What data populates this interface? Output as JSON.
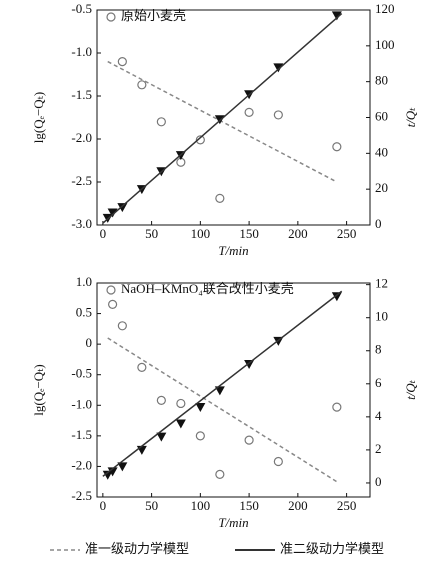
{
  "chart_data": [
    {
      "type": "scatter",
      "xlabel": "T/min",
      "ylabel": "lg(Qₑ−Qₜ)",
      "y2label": "t/Qₜ",
      "xlim": [
        -6,
        274
      ],
      "xticks": [
        0,
        50,
        100,
        150,
        200,
        250
      ],
      "ylim": [
        -3,
        -0.5
      ],
      "yticks": [
        {
          "value": -3,
          "label": "-3.0"
        },
        -2.5,
        {
          "value": -2,
          "label": "-2.0"
        },
        -1.5,
        {
          "value": -1,
          "label": "-1.0"
        },
        -0.5
      ],
      "y2lim": [
        0,
        120
      ],
      "y2ticks": [
        0,
        20,
        40,
        60,
        80,
        100,
        120
      ],
      "series": [
        {
          "name": "原始小麦壳",
          "style": "circle",
          "color": "#777777",
          "x": [
            20,
            40,
            60,
            80,
            100,
            120,
            150,
            180,
            240
          ],
          "values": [
            -1.1,
            -1.37,
            -1.8,
            -2.27,
            -2.01,
            -2.69,
            -1.69,
            -1.72,
            -2.09
          ]
        },
        {
          "name": "准一级动力学模型",
          "style": "dashed",
          "color": "#888888",
          "x": [
            5,
            240
          ],
          "values": [
            -1.1,
            -2.5
          ]
        },
        {
          "style": "triangle",
          "axis": "y2",
          "color": "#111111",
          "x": [
            5,
            10,
            20,
            40,
            60,
            80,
            120,
            150,
            180,
            240
          ],
          "values": [
            4,
            7,
            10,
            20,
            30,
            39,
            59,
            73,
            88,
            117
          ]
        },
        {
          "name": "准二级动力学模型",
          "style": "solid",
          "axis": "y2",
          "color": "#333333",
          "x": [
            0,
            245
          ],
          "values": [
            1,
            118
          ]
        }
      ]
    },
    {
      "type": "scatter",
      "xlabel": "T/min",
      "ylabel": "lg(Qₑ−Qₜ)",
      "y2label": "t/Qₜ",
      "xlim": [
        -6,
        274
      ],
      "xticks": [
        0,
        50,
        100,
        150,
        200,
        250
      ],
      "ylim": [
        -2.5,
        1
      ],
      "yticks": [
        -2.5,
        {
          "value": -2,
          "label": "-2.0"
        },
        -1.5,
        {
          "value": -1,
          "label": "-1.0"
        },
        -0.5,
        0,
        0.5,
        {
          "value": 1,
          "label": "1.0"
        }
      ],
      "y2lim": [
        -0.85,
        12.1
      ],
      "y2ticks": [
        0,
        2,
        4,
        6,
        8,
        10,
        12
      ],
      "series": [
        {
          "name": "NaOH–KMnO₄联合改性小麦壳",
          "style": "circle",
          "color": "#777777",
          "x": [
            10,
            20,
            40,
            60,
            80,
            100,
            120,
            150,
            180,
            240
          ],
          "values": [
            0.65,
            0.3,
            -0.38,
            -0.92,
            -0.97,
            -1.5,
            -2.13,
            -1.57,
            -1.92,
            -1.03
          ]
        },
        {
          "style": "dashed",
          "color": "#888888",
          "x": [
            5,
            240
          ],
          "values": [
            0.1,
            -2.25
          ]
        },
        {
          "style": "triangle",
          "axis": "y2",
          "color": "#111111",
          "x": [
            5,
            10,
            20,
            40,
            60,
            80,
            100,
            120,
            150,
            180,
            240
          ],
          "values": [
            0.5,
            0.7,
            1.0,
            2.0,
            2.8,
            3.6,
            4.6,
            5.6,
            7.2,
            8.6,
            11.3
          ]
        },
        {
          "style": "solid",
          "axis": "y2",
          "color": "#333333",
          "x": [
            0,
            245
          ],
          "values": [
            0.4,
            11.6
          ]
        }
      ]
    }
  ]
}
